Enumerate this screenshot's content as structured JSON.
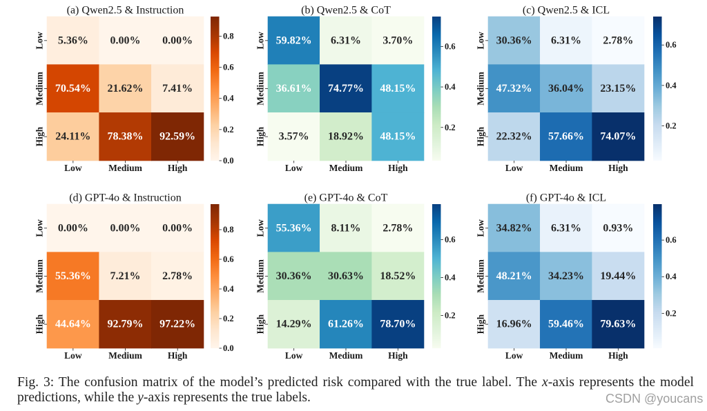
{
  "chart_data": [
    {
      "type": "heatmap",
      "title": "(a) Qwen2.5 & Instruction",
      "x_categories": [
        "Low",
        "Medium",
        "High"
      ],
      "y_categories": [
        "Low",
        "Medium",
        "High"
      ],
      "values_percent": [
        [
          5.36,
          0.0,
          0.0
        ],
        [
          70.54,
          21.62,
          7.41
        ],
        [
          24.11,
          78.38,
          92.59
        ]
      ],
      "colormap": [
        "#fff5eb",
        "#fee6ce",
        "#fdd0a2",
        "#fdae6b",
        "#fd8d3c",
        "#f16913",
        "#d94801",
        "#a63603",
        "#7f2704"
      ],
      "annotation_colors": [
        [
          "#262626",
          "#262626",
          "#262626"
        ],
        [
          "#ffffff",
          "#262626",
          "#262626"
        ],
        [
          "#262626",
          "#ffffff",
          "#ffffff"
        ]
      ],
      "colorbar_ticks": [
        0.0,
        0.2,
        0.4,
        0.6,
        0.8
      ]
    },
    {
      "type": "heatmap",
      "title": "(b) Qwen2.5 & CoT",
      "x_categories": [
        "Low",
        "Medium",
        "High"
      ],
      "y_categories": [
        "Low",
        "Medium",
        "High"
      ],
      "values_percent": [
        [
          59.82,
          6.31,
          3.7
        ],
        [
          36.61,
          74.77,
          48.15
        ],
        [
          3.57,
          18.92,
          48.15
        ]
      ],
      "colormap": [
        "#f7fcf0",
        "#e0f3db",
        "#ccebc5",
        "#a8ddb5",
        "#7bccc4",
        "#4eb3d3",
        "#2b8cbe",
        "#0868ac",
        "#084081"
      ],
      "annotation_colors": [
        [
          "#ffffff",
          "#262626",
          "#262626"
        ],
        [
          "#ffffff",
          "#ffffff",
          "#ffffff"
        ],
        [
          "#262626",
          "#262626",
          "#ffffff"
        ]
      ],
      "colorbar_ticks": [
        0.2,
        0.4,
        0.6
      ]
    },
    {
      "type": "heatmap",
      "title": "(c) Qwen2.5 & ICL",
      "x_categories": [
        "Low",
        "Medium",
        "High"
      ],
      "y_categories": [
        "Low",
        "Medium",
        "High"
      ],
      "values_percent": [
        [
          30.36,
          6.31,
          2.78
        ],
        [
          47.32,
          36.04,
          23.15
        ],
        [
          22.32,
          57.66,
          74.07
        ]
      ],
      "colormap": [
        "#f7fbff",
        "#deebf7",
        "#c6dbef",
        "#9ecae1",
        "#6baed6",
        "#4292c6",
        "#2171b5",
        "#08519c",
        "#08306b"
      ],
      "annotation_colors": [
        [
          "#262626",
          "#262626",
          "#262626"
        ],
        [
          "#ffffff",
          "#262626",
          "#262626"
        ],
        [
          "#262626",
          "#ffffff",
          "#ffffff"
        ]
      ],
      "colorbar_ticks": [
        0.2,
        0.4,
        0.6
      ]
    },
    {
      "type": "heatmap",
      "title": "(d) GPT-4o & Instruction",
      "x_categories": [
        "Low",
        "Medium",
        "High"
      ],
      "y_categories": [
        "Low",
        "Medium",
        "High"
      ],
      "values_percent": [
        [
          0.0,
          0.0,
          0.0
        ],
        [
          55.36,
          7.21,
          2.78
        ],
        [
          44.64,
          92.79,
          97.22
        ]
      ],
      "colormap": [
        "#fff5eb",
        "#fee6ce",
        "#fdd0a2",
        "#fdae6b",
        "#fd8d3c",
        "#f16913",
        "#d94801",
        "#a63603",
        "#7f2704"
      ],
      "annotation_colors": [
        [
          "#262626",
          "#262626",
          "#262626"
        ],
        [
          "#ffffff",
          "#262626",
          "#262626"
        ],
        [
          "#ffffff",
          "#ffffff",
          "#ffffff"
        ]
      ],
      "colorbar_ticks": [
        0.0,
        0.2,
        0.4,
        0.6,
        0.8
      ]
    },
    {
      "type": "heatmap",
      "title": "(e) GPT-4o & CoT",
      "x_categories": [
        "Low",
        "Medium",
        "High"
      ],
      "y_categories": [
        "Low",
        "Medium",
        "High"
      ],
      "values_percent": [
        [
          55.36,
          8.11,
          2.78
        ],
        [
          30.36,
          30.63,
          18.52
        ],
        [
          14.29,
          61.26,
          78.7
        ]
      ],
      "colormap": [
        "#f7fcf0",
        "#e0f3db",
        "#ccebc5",
        "#a8ddb5",
        "#7bccc4",
        "#4eb3d3",
        "#2b8cbe",
        "#0868ac",
        "#084081"
      ],
      "annotation_colors": [
        [
          "#ffffff",
          "#262626",
          "#262626"
        ],
        [
          "#262626",
          "#262626",
          "#262626"
        ],
        [
          "#262626",
          "#ffffff",
          "#ffffff"
        ]
      ],
      "colorbar_ticks": [
        0.2,
        0.4,
        0.6
      ]
    },
    {
      "type": "heatmap",
      "title": "(f) GPT-4o & ICL",
      "x_categories": [
        "Low",
        "Medium",
        "High"
      ],
      "y_categories": [
        "Low",
        "Medium",
        "High"
      ],
      "values_percent": [
        [
          34.82,
          6.31,
          0.93
        ],
        [
          48.21,
          34.23,
          19.44
        ],
        [
          16.96,
          59.46,
          79.63
        ]
      ],
      "colormap": [
        "#f7fbff",
        "#deebf7",
        "#c6dbef",
        "#9ecae1",
        "#6baed6",
        "#4292c6",
        "#2171b5",
        "#08519c",
        "#08306b"
      ],
      "annotation_colors": [
        [
          "#262626",
          "#262626",
          "#262626"
        ],
        [
          "#ffffff",
          "#262626",
          "#262626"
        ],
        [
          "#262626",
          "#ffffff",
          "#ffffff"
        ]
      ],
      "colorbar_ticks": [
        0.2,
        0.4,
        0.6
      ]
    }
  ],
  "caption": {
    "part1": "Fig. 3: The confusion matrix of the model’s predicted risk compared with the true label. The ",
    "x_var": "x",
    "part2": "-axis represents the model predictions, while the ",
    "y_var": "y",
    "part3": "-axis represents the true labels."
  },
  "watermark": "CSDN @youcans"
}
